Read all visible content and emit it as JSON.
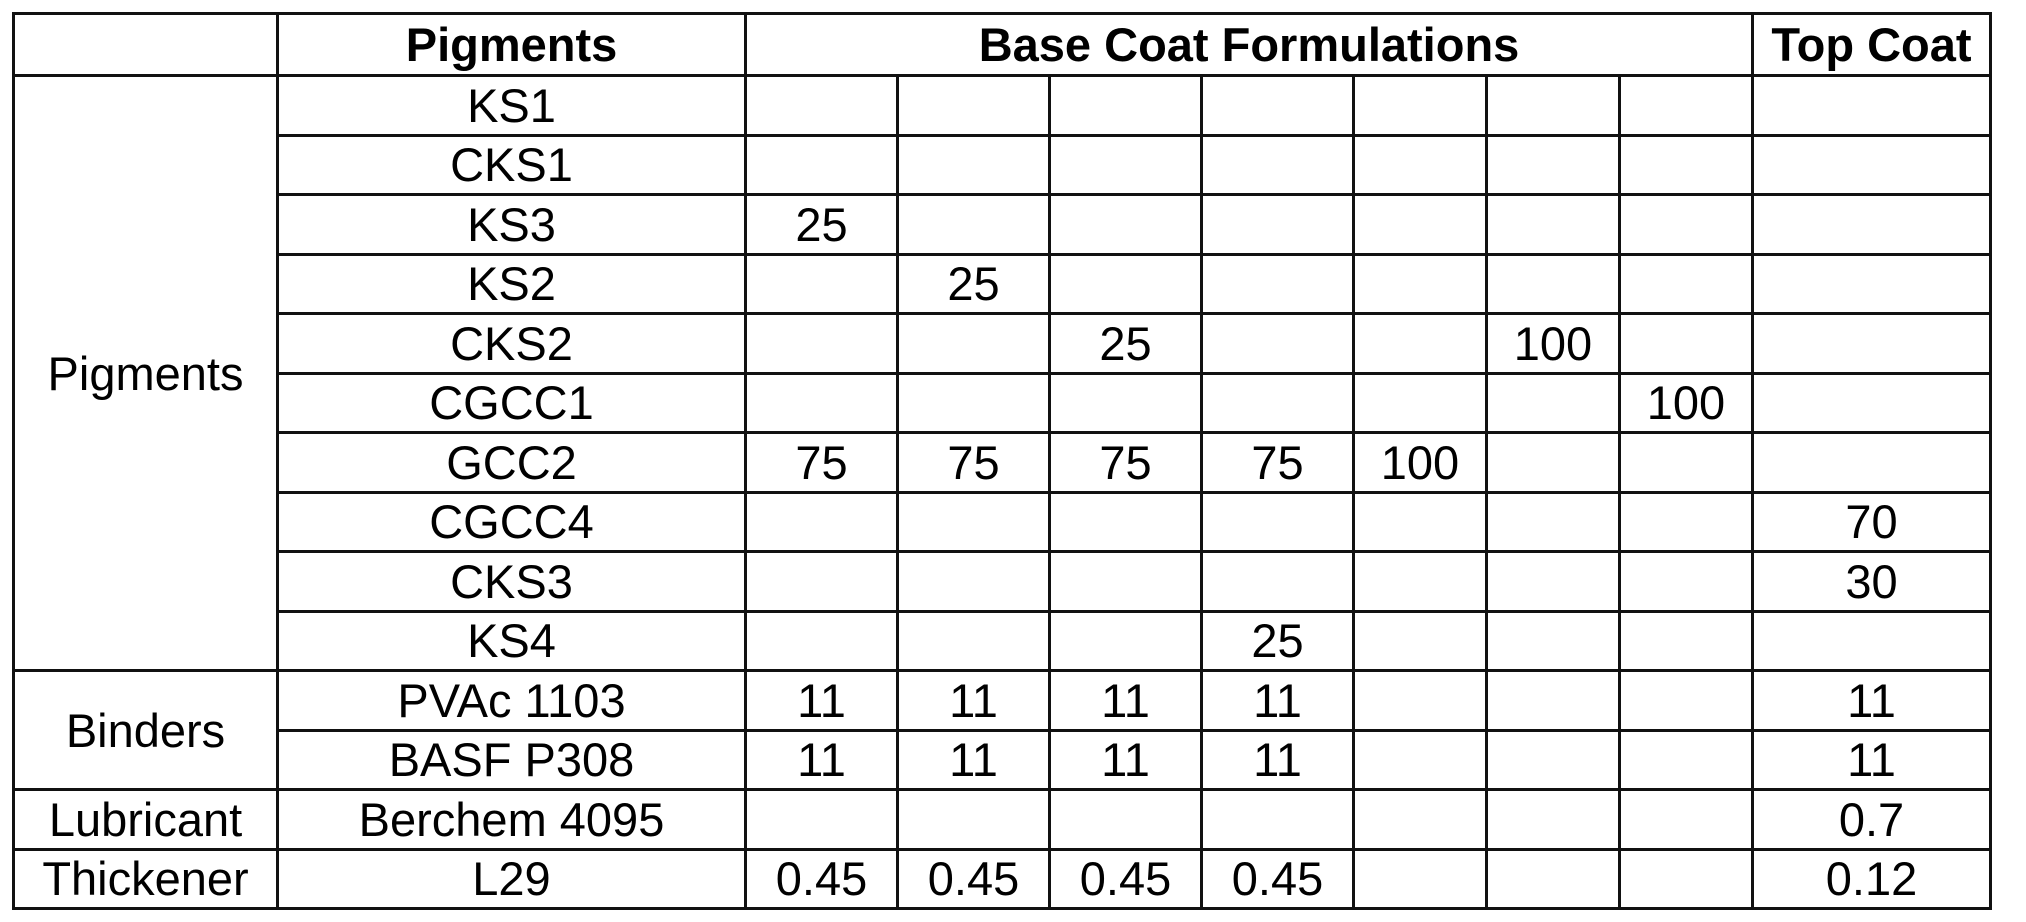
{
  "header": {
    "corner": "",
    "pigments": "Pigments",
    "base_coat": "Base Coat Formulations",
    "top_coat": "Top Coat"
  },
  "groups": [
    {
      "name": "Pigments",
      "rows": [
        {
          "label": "KS1",
          "values": [
            "",
            "",
            "",
            "",
            "",
            "",
            "",
            ""
          ]
        },
        {
          "label": "CKS1",
          "values": [
            "",
            "",
            "",
            "",
            "",
            "",
            "",
            ""
          ]
        },
        {
          "label": "KS3",
          "values": [
            "25",
            "",
            "",
            "",
            "",
            "",
            "",
            ""
          ]
        },
        {
          "label": "KS2",
          "values": [
            "",
            "25",
            "",
            "",
            "",
            "",
            "",
            ""
          ]
        },
        {
          "label": "CKS2",
          "values": [
            "",
            "",
            "25",
            "",
            "",
            "100",
            "",
            ""
          ]
        },
        {
          "label": "CGCC1",
          "values": [
            "",
            "",
            "",
            "",
            "",
            "",
            "100",
            ""
          ]
        },
        {
          "label": "GCC2",
          "values": [
            "75",
            "75",
            "75",
            "75",
            "100",
            "",
            "",
            ""
          ]
        },
        {
          "label": "CGCC4",
          "values": [
            "",
            "",
            "",
            "",
            "",
            "",
            "",
            "70"
          ]
        },
        {
          "label": "CKS3",
          "values": [
            "",
            "",
            "",
            "",
            "",
            "",
            "",
            "30"
          ]
        },
        {
          "label": "KS4",
          "values": [
            "",
            "",
            "",
            "25",
            "",
            "",
            "",
            ""
          ]
        }
      ]
    },
    {
      "name": "Binders",
      "rows": [
        {
          "label": "PVAc 1103",
          "values": [
            "11",
            "11",
            "11",
            "11",
            "",
            "",
            "",
            "11"
          ]
        },
        {
          "label": "BASF P308",
          "values": [
            "11",
            "11",
            "11",
            "11",
            "",
            "",
            "",
            "11"
          ]
        }
      ]
    },
    {
      "name": "Lubricant",
      "rows": [
        {
          "label": "Berchem 4095",
          "values": [
            "",
            "",
            "",
            "",
            "",
            "",
            "",
            "0.7"
          ]
        }
      ]
    },
    {
      "name": "Thickener",
      "rows": [
        {
          "label": "L29",
          "values": [
            "0.45",
            "0.45",
            "0.45",
            "0.45",
            "",
            "",
            "",
            "0.12"
          ]
        }
      ]
    }
  ]
}
